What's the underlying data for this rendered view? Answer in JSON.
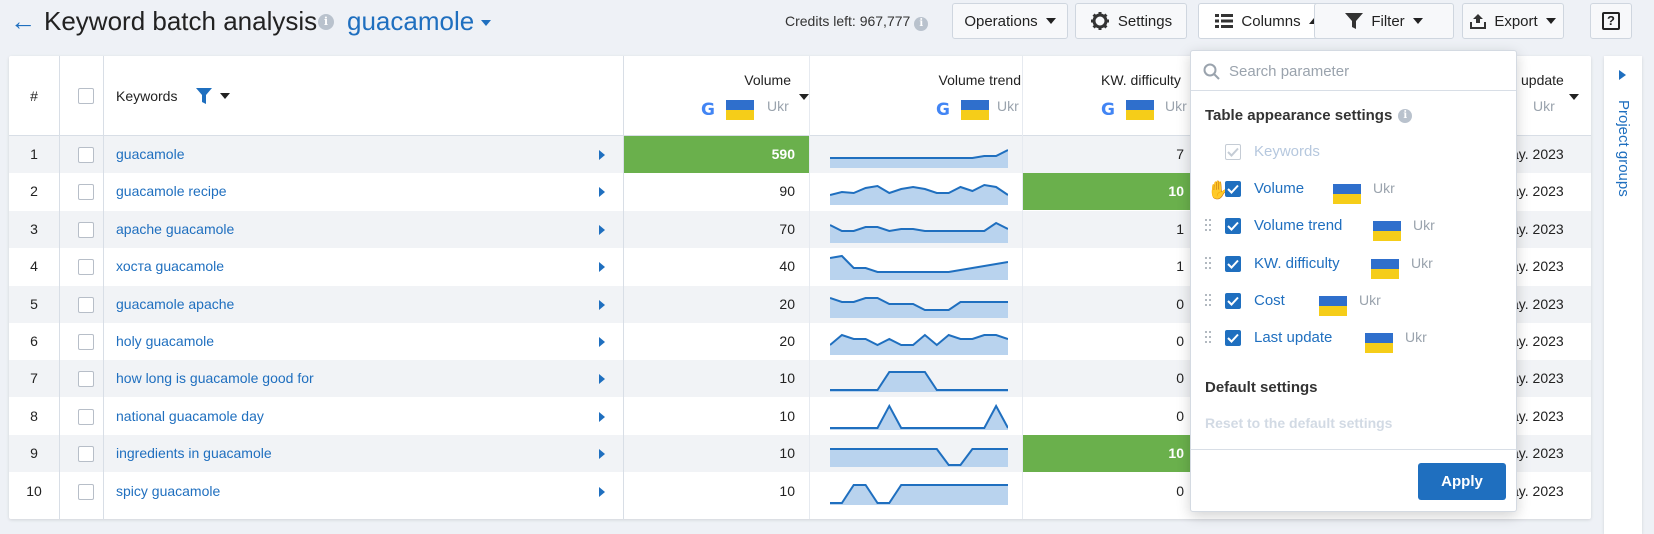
{
  "header": {
    "title": "Keyword batch analysis",
    "project": "guacamole",
    "credits": "Credits left: 967,777"
  },
  "toolbar": {
    "operations": "Operations",
    "settings": "Settings",
    "columns": "Columns",
    "filter": "Filter",
    "export": "Export",
    "help": "?"
  },
  "table": {
    "headers": {
      "index": "#",
      "keywords": "Keywords",
      "volume": "Volume",
      "volume_trend": "Volume trend",
      "kw_difficulty": "KW. difficulty",
      "last_update": "update",
      "country": "Ukr"
    },
    "rows": [
      {
        "n": "1",
        "keyword": "guacamole",
        "volume": "590",
        "difficulty": "7",
        "date": "ay. 2023",
        "volume_highlight": true,
        "diff_highlight": false
      },
      {
        "n": "2",
        "keyword": "guacamole recipe",
        "volume": "90",
        "difficulty": "10",
        "date": "ay. 2023",
        "volume_highlight": false,
        "diff_highlight": true
      },
      {
        "n": "3",
        "keyword": "apache guacamole",
        "volume": "70",
        "difficulty": "1",
        "date": "ay. 2023",
        "volume_highlight": false,
        "diff_highlight": false
      },
      {
        "n": "4",
        "keyword": "хоста guacamole",
        "volume": "40",
        "difficulty": "1",
        "date": "ay. 2023",
        "volume_highlight": false,
        "diff_highlight": false
      },
      {
        "n": "5",
        "keyword": "guacamole apache",
        "volume": "20",
        "difficulty": "0",
        "date": "ay. 2023",
        "volume_highlight": false,
        "diff_highlight": false
      },
      {
        "n": "6",
        "keyword": "holy guacamole",
        "volume": "20",
        "difficulty": "0",
        "date": "ay. 2023",
        "volume_highlight": false,
        "diff_highlight": false
      },
      {
        "n": "7",
        "keyword": "how long is guacamole good for",
        "volume": "10",
        "difficulty": "0",
        "date": "ay. 2023",
        "volume_highlight": false,
        "diff_highlight": false
      },
      {
        "n": "8",
        "keyword": "national guacamole day",
        "volume": "10",
        "difficulty": "0",
        "date": "ay. 2023",
        "volume_highlight": false,
        "diff_highlight": false
      },
      {
        "n": "9",
        "keyword": "ingredients in guacamole",
        "volume": "10",
        "difficulty": "10",
        "date": "ay. 2023",
        "volume_highlight": false,
        "diff_highlight": true
      },
      {
        "n": "10",
        "keyword": "spicy guacamole",
        "volume": "10",
        "difficulty": "0",
        "date": "ay. 2023",
        "volume_highlight": false,
        "diff_highlight": false
      }
    ]
  },
  "right_panel": {
    "label": "Project groups"
  },
  "columns_dropdown": {
    "search_placeholder": "Search parameter",
    "appearance_title": "Table appearance settings",
    "items": [
      {
        "label": "Keywords",
        "checked": true,
        "disabled": true,
        "country": ""
      },
      {
        "label": "Volume",
        "checked": true,
        "disabled": false,
        "country": "Ukr"
      },
      {
        "label": "Volume trend",
        "checked": true,
        "disabled": false,
        "country": "Ukr"
      },
      {
        "label": "KW. difficulty",
        "checked": true,
        "disabled": false,
        "country": "Ukr"
      },
      {
        "label": "Cost",
        "checked": true,
        "disabled": false,
        "country": "Ukr"
      },
      {
        "label": "Last update",
        "checked": true,
        "disabled": false,
        "country": "Ukr"
      }
    ],
    "default_title": "Default settings",
    "reset_label": "Reset to the default settings",
    "apply_label": "Apply"
  },
  "colors": {
    "accent": "#1f6fbf",
    "highlight_green": "#6ab04c",
    "flag_blue": "#2f6fcc",
    "flag_yellow": "#f5cd19"
  }
}
